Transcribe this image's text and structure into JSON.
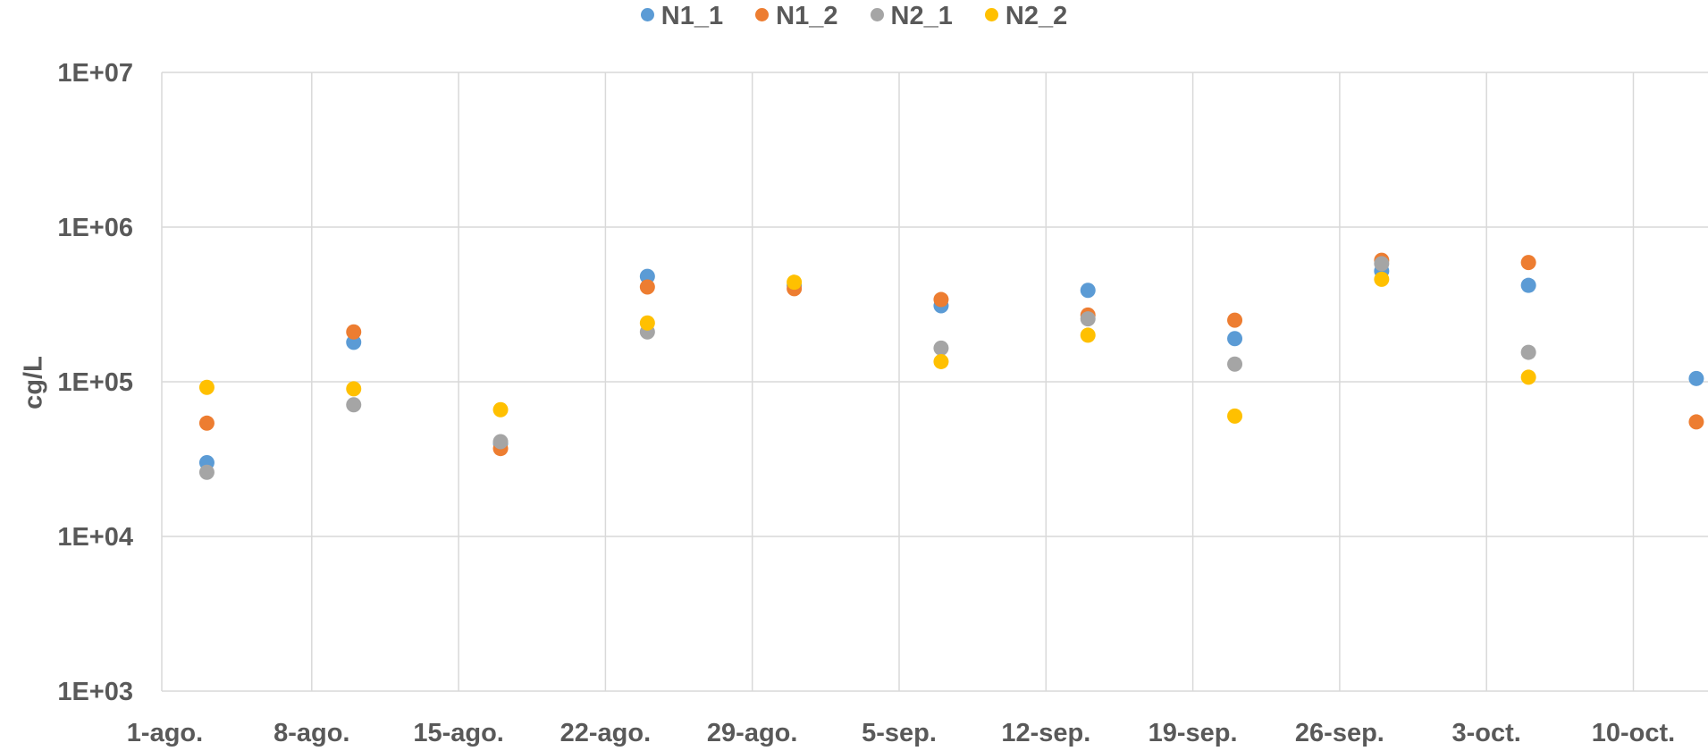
{
  "colors": {
    "N1_1": "#5B9BD5",
    "N1_2": "#ED7D31",
    "N2_1": "#A5A5A5",
    "N2_2": "#FFC000",
    "grid": "#D9D9D9",
    "text": "#595959"
  },
  "chart_data": {
    "type": "scatter",
    "title": "",
    "xlabel": "",
    "ylabel": "cg/L",
    "y_scale": "log",
    "ylim": [
      1000,
      10000000
    ],
    "y_ticks": [
      {
        "value": 1000,
        "label": "1E+03"
      },
      {
        "value": 10000,
        "label": "1E+04"
      },
      {
        "value": 100000,
        "label": "1E+05"
      },
      {
        "value": 1000000,
        "label": "1E+06"
      },
      {
        "value": 10000000,
        "label": "1E+07"
      }
    ],
    "x_axis": "date",
    "xlim": [
      "2020-08-01",
      "2020-10-15"
    ],
    "x_ticks": [
      {
        "date": "2020-08-01",
        "label": "1-ago."
      },
      {
        "date": "2020-08-08",
        "label": "8-ago."
      },
      {
        "date": "2020-08-15",
        "label": "15-ago."
      },
      {
        "date": "2020-08-22",
        "label": "22-ago."
      },
      {
        "date": "2020-08-29",
        "label": "29-ago."
      },
      {
        "date": "2020-09-05",
        "label": "5-sep."
      },
      {
        "date": "2020-09-12",
        "label": "12-sep."
      },
      {
        "date": "2020-09-19",
        "label": "19-sep."
      },
      {
        "date": "2020-09-26",
        "label": "26-sep."
      },
      {
        "date": "2020-10-03",
        "label": "3-oct."
      },
      {
        "date": "2020-10-10",
        "label": "10-oct."
      }
    ],
    "grid": true,
    "legend_position": "top-center",
    "series": [
      {
        "name": "N1_1",
        "points": [
          {
            "x": "2020-08-03",
            "y": 30000
          },
          {
            "x": "2020-08-10",
            "y": 180000
          },
          {
            "x": "2020-08-17",
            "y": 40000
          },
          {
            "x": "2020-08-24",
            "y": 480000
          },
          {
            "x": "2020-08-31",
            "y": 420000
          },
          {
            "x": "2020-09-07",
            "y": 310000
          },
          {
            "x": "2020-09-14",
            "y": 390000
          },
          {
            "x": "2020-09-21",
            "y": 190000
          },
          {
            "x": "2020-09-28",
            "y": 520000
          },
          {
            "x": "2020-10-05",
            "y": 420000
          },
          {
            "x": "2020-10-13",
            "y": 105000
          }
        ]
      },
      {
        "name": "N1_2",
        "points": [
          {
            "x": "2020-08-03",
            "y": 54000
          },
          {
            "x": "2020-08-10",
            "y": 210000
          },
          {
            "x": "2020-08-17",
            "y": 37000
          },
          {
            "x": "2020-08-24",
            "y": 410000
          },
          {
            "x": "2020-08-31",
            "y": 400000
          },
          {
            "x": "2020-09-07",
            "y": 340000
          },
          {
            "x": "2020-09-14",
            "y": 270000
          },
          {
            "x": "2020-09-21",
            "y": 250000
          },
          {
            "x": "2020-09-28",
            "y": 610000
          },
          {
            "x": "2020-10-05",
            "y": 590000
          },
          {
            "x": "2020-10-13",
            "y": 55000
          }
        ]
      },
      {
        "name": "N2_1",
        "points": [
          {
            "x": "2020-08-03",
            "y": 26000
          },
          {
            "x": "2020-08-10",
            "y": 71000
          },
          {
            "x": "2020-08-17",
            "y": 41000
          },
          {
            "x": "2020-08-24",
            "y": 210000
          },
          {
            "x": "2020-09-07",
            "y": 165000
          },
          {
            "x": "2020-09-14",
            "y": 255000
          },
          {
            "x": "2020-09-21",
            "y": 130000
          },
          {
            "x": "2020-09-28",
            "y": 580000
          },
          {
            "x": "2020-10-05",
            "y": 155000
          }
        ]
      },
      {
        "name": "N2_2",
        "points": [
          {
            "x": "2020-08-03",
            "y": 92000
          },
          {
            "x": "2020-08-10",
            "y": 90000
          },
          {
            "x": "2020-08-17",
            "y": 66000
          },
          {
            "x": "2020-08-24",
            "y": 240000
          },
          {
            "x": "2020-08-31",
            "y": 440000
          },
          {
            "x": "2020-09-07",
            "y": 135000
          },
          {
            "x": "2020-09-14",
            "y": 200000
          },
          {
            "x": "2020-09-21",
            "y": 60000
          },
          {
            "x": "2020-09-28",
            "y": 460000
          },
          {
            "x": "2020-10-05",
            "y": 107000
          }
        ]
      }
    ]
  }
}
